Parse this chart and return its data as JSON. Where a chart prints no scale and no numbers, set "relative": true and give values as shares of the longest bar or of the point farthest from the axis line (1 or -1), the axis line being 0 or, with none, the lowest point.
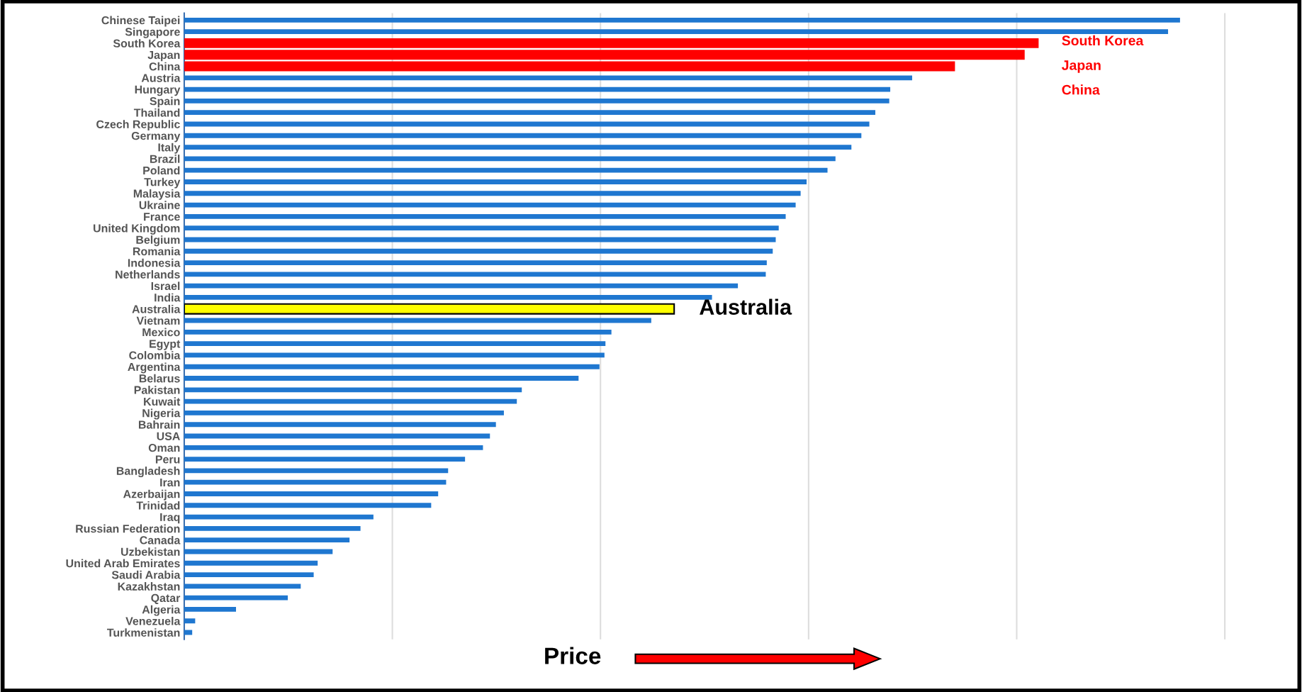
{
  "chart_data": {
    "type": "bar",
    "orientation": "horizontal",
    "relative": true,
    "grid": "x",
    "tick_labels": "y",
    "xlabel": "Price",
    "categories": [
      "Chinese Taipei",
      "Singapore",
      "South Korea",
      "Japan",
      "China",
      "Austria",
      "Hungary",
      "Spain",
      "Thailand",
      "Czech Republic",
      "Germany",
      "Italy",
      "Brazil",
      "Poland",
      "Turkey",
      "Malaysia",
      "Ukraine",
      "France",
      "United Kingdom",
      "Belgium",
      "Romania",
      "Indonesia",
      "Netherlands",
      "Israel",
      "India",
      "Australia",
      "Vietnam",
      "Mexico",
      "Egypt",
      "Colombia",
      "Argentina",
      "Belarus",
      "Pakistan",
      "Kuwait",
      "Nigeria",
      "Bahrain",
      "USA",
      "Oman",
      "Peru",
      "Bangladesh",
      "Iran",
      "Azerbaijan",
      "Trinidad",
      "Iraq",
      "Russian Federation",
      "Canada",
      "Uzbekistan",
      "United Arab Emirates",
      "Saudi Arabia",
      "Kazakhstan",
      "Qatar",
      "Algeria",
      "Venezuela",
      "Turkmenistan"
    ],
    "values": [
      1.0,
      0.988,
      0.858,
      0.844,
      0.774,
      0.731,
      0.709,
      0.708,
      0.694,
      0.688,
      0.68,
      0.67,
      0.654,
      0.646,
      0.625,
      0.619,
      0.614,
      0.604,
      0.597,
      0.594,
      0.591,
      0.585,
      0.584,
      0.556,
      0.53,
      0.492,
      0.469,
      0.429,
      0.423,
      0.422,
      0.417,
      0.396,
      0.339,
      0.334,
      0.321,
      0.313,
      0.307,
      0.3,
      0.282,
      0.265,
      0.263,
      0.255,
      0.248,
      0.19,
      0.177,
      0.166,
      0.149,
      0.134,
      0.13,
      0.117,
      0.104,
      0.052,
      0.011,
      0.008
    ],
    "colors": [
      "#1f77d0",
      "#1f77d0",
      "#ff0000",
      "#ff0000",
      "#ff0000",
      "#1f77d0",
      "#1f77d0",
      "#1f77d0",
      "#1f77d0",
      "#1f77d0",
      "#1f77d0",
      "#1f77d0",
      "#1f77d0",
      "#1f77d0",
      "#1f77d0",
      "#1f77d0",
      "#1f77d0",
      "#1f77d0",
      "#1f77d0",
      "#1f77d0",
      "#1f77d0",
      "#1f77d0",
      "#1f77d0",
      "#1f77d0",
      "#1f77d0",
      "#ffff00",
      "#1f77d0",
      "#1f77d0",
      "#1f77d0",
      "#1f77d0",
      "#1f77d0",
      "#1f77d0",
      "#1f77d0",
      "#1f77d0",
      "#1f77d0",
      "#1f77d0",
      "#1f77d0",
      "#1f77d0",
      "#1f77d0",
      "#1f77d0",
      "#1f77d0",
      "#1f77d0",
      "#1f77d0",
      "#1f77d0",
      "#1f77d0",
      "#1f77d0",
      "#1f77d0",
      "#1f77d0",
      "#1f77d0",
      "#1f77d0",
      "#1f77d0",
      "#1f77d0",
      "#1f77d0",
      "#1f77d0"
    ],
    "annotations": [
      "South Korea",
      "Japan",
      "China",
      {
        "text": "Australia",
        "x": 0.492,
        "y": "Australia"
      }
    ]
  }
}
